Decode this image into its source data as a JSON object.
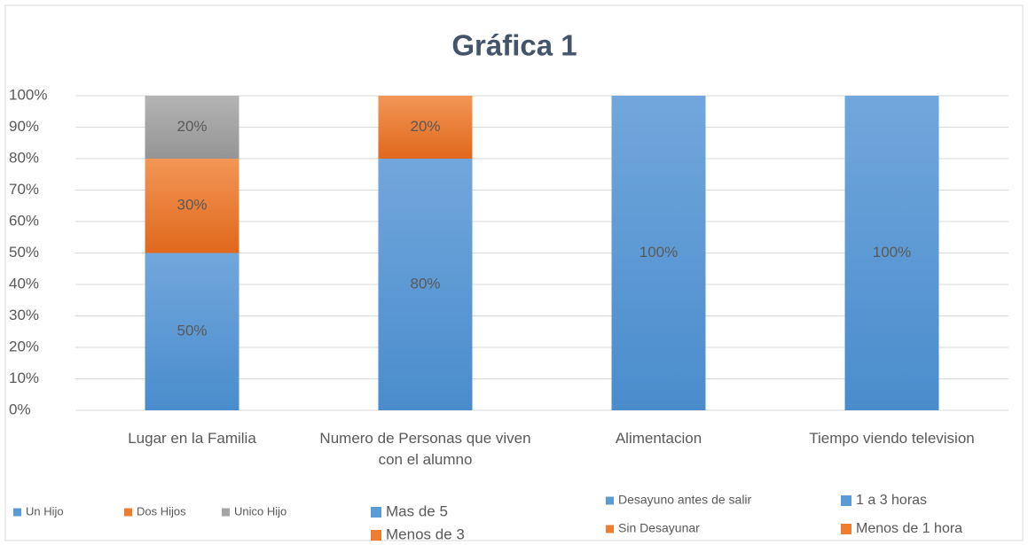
{
  "chart_data": {
    "type": "stacked_bar",
    "title": "Gráfica 1",
    "categories": [
      "Lugar en  la Familia",
      "Numero de Personas que viven con el alumno",
      "Alimentacion",
      "Tiempo viendo television"
    ],
    "ylim": [
      0,
      100
    ],
    "yticks": [
      {
        "value": 0,
        "label": "0%"
      },
      {
        "value": 10,
        "label": "10%"
      },
      {
        "value": 20,
        "label": "20%"
      },
      {
        "value": 30,
        "label": "30%"
      },
      {
        "value": 40,
        "label": "40%"
      },
      {
        "value": 50,
        "label": "50%"
      },
      {
        "value": 60,
        "label": "60%"
      },
      {
        "value": 70,
        "label": "70%"
      },
      {
        "value": 80,
        "label": "80%"
      },
      {
        "value": 90,
        "label": "90%"
      },
      {
        "value": 100,
        "label": "100%"
      }
    ],
    "grid": true,
    "series": [
      {
        "name": "Un Hijo",
        "color": "#5b9bd5",
        "values": [
          50,
          null,
          null,
          null
        ],
        "value_labels": [
          "50%",
          null,
          null,
          null
        ]
      },
      {
        "name": "Dos Hijos",
        "color": "#ed7d31",
        "values": [
          30,
          null,
          null,
          null
        ],
        "value_labels": [
          "30%",
          null,
          null,
          null
        ]
      },
      {
        "name": "Unico Hijo",
        "color": "#a5a5a5",
        "values": [
          20,
          null,
          null,
          null
        ],
        "value_labels": [
          "20%",
          null,
          null,
          null
        ]
      },
      {
        "name": "Mas de 5",
        "color": "#5b9bd5",
        "values": [
          null,
          80,
          null,
          null
        ],
        "value_labels": [
          null,
          "80%",
          null,
          null
        ]
      },
      {
        "name": "Menos de 3",
        "color": "#ed7d31",
        "values": [
          null,
          20,
          null,
          null
        ],
        "value_labels": [
          null,
          "20%",
          null,
          null
        ]
      },
      {
        "name": "Desayuno antes de salir",
        "color": "#5b9bd5",
        "values": [
          null,
          null,
          100,
          null
        ],
        "value_labels": [
          null,
          null,
          "100%",
          null
        ]
      },
      {
        "name": "Sin Desayunar",
        "color": "#ed7d31",
        "values": [
          null,
          null,
          null,
          null
        ],
        "value_labels": [
          null,
          null,
          null,
          null
        ]
      },
      {
        "name": "1 a 3 horas",
        "color": "#5b9bd5",
        "values": [
          null,
          null,
          null,
          100
        ],
        "value_labels": [
          null,
          null,
          null,
          "100%"
        ]
      },
      {
        "name": "Menos de 1 hora",
        "color": "#ed7d31",
        "values": [
          null,
          null,
          null,
          null
        ],
        "value_labels": [
          null,
          null,
          null,
          null
        ]
      }
    ]
  }
}
